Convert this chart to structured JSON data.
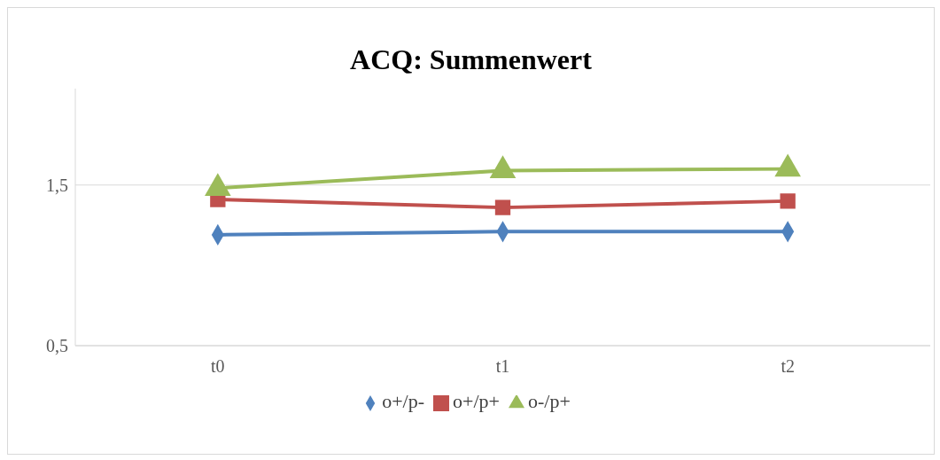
{
  "chart_data": {
    "type": "line",
    "title": "ACQ: Summenwert",
    "categories": [
      "t0",
      "t1",
      "t2"
    ],
    "series": [
      {
        "name": "o+/p-",
        "color": "#4f81bd",
        "marker": "diamond",
        "values": [
          1.19,
          1.21,
          1.21
        ]
      },
      {
        "name": "o+/p+",
        "color": "#c0504d",
        "marker": "square",
        "values": [
          1.41,
          1.36,
          1.4
        ]
      },
      {
        "name": "o-/p+",
        "color": "#9bbb59",
        "marker": "triangle",
        "values": [
          1.48,
          1.59,
          1.6
        ]
      }
    ],
    "ylim": [
      0.5,
      2.1
    ],
    "yticks": [
      {
        "value": 0.5,
        "label": "0,5"
      },
      {
        "value": 1.5,
        "label": "1,5"
      }
    ],
    "grid": "y",
    "legend": "bottom",
    "line_style": "solid"
  }
}
